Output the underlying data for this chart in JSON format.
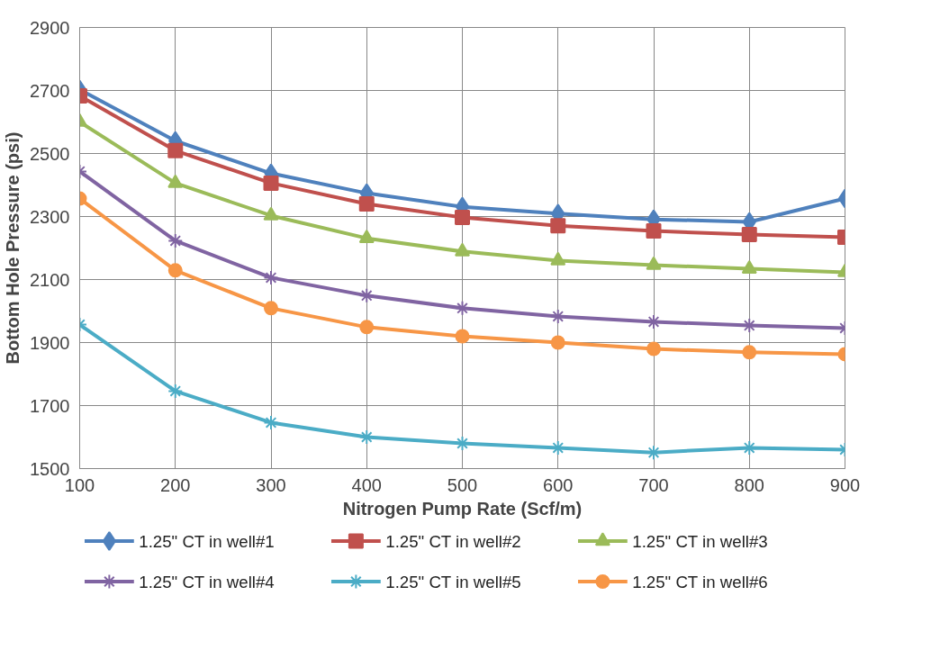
{
  "chart_data": {
    "type": "line",
    "xlabel": "Nitrogen Pump Rate (Scf/m)",
    "ylabel": "Bottom Hole Pressure (psi)",
    "x": [
      100,
      200,
      300,
      400,
      500,
      600,
      700,
      800,
      900
    ],
    "xlim": [
      100,
      900
    ],
    "xticks": [
      100,
      200,
      300,
      400,
      500,
      600,
      700,
      800,
      900
    ],
    "ylim": [
      1500,
      2900
    ],
    "yticks": [
      1500,
      1700,
      1900,
      2100,
      2300,
      2500,
      2700,
      2900
    ],
    "grid": true,
    "legend": "bottom",
    "line_style": "solid",
    "series": [
      {
        "name": "1.25\" CT in well#1",
        "color": "#4f81bd",
        "marker": "diamond",
        "values": [
          2703,
          2540,
          2437,
          2374,
          2331,
          2309,
          2291,
          2283,
          2357
        ]
      },
      {
        "name": "1.25\" CT in well#2",
        "color": "#c0504d",
        "marker": "square",
        "values": [
          2683,
          2509,
          2406,
          2340,
          2297,
          2271,
          2254,
          2243,
          2234
        ]
      },
      {
        "name": "1.25\" CT in well#3",
        "color": "#9bbb59",
        "marker": "triangle",
        "values": [
          2600,
          2406,
          2303,
          2231,
          2189,
          2160,
          2146,
          2134,
          2123
        ]
      },
      {
        "name": "1.25\" CT in well#4",
        "color": "#8064a2",
        "marker": "cross",
        "values": [
          2443,
          2223,
          2106,
          2049,
          2009,
          1983,
          1966,
          1954,
          1946
        ]
      },
      {
        "name": "1.25\" CT in well#5",
        "color": "#4bacc6",
        "marker": "cross",
        "values": [
          1957,
          1746,
          1646,
          1600,
          1580,
          1566,
          1551,
          1566,
          1560
        ]
      },
      {
        "name": "1.25\" CT in well#6",
        "color": "#f79646",
        "marker": "circle",
        "values": [
          2357,
          2129,
          2009,
          1949,
          1920,
          1900,
          1880,
          1869,
          1863
        ]
      }
    ]
  }
}
